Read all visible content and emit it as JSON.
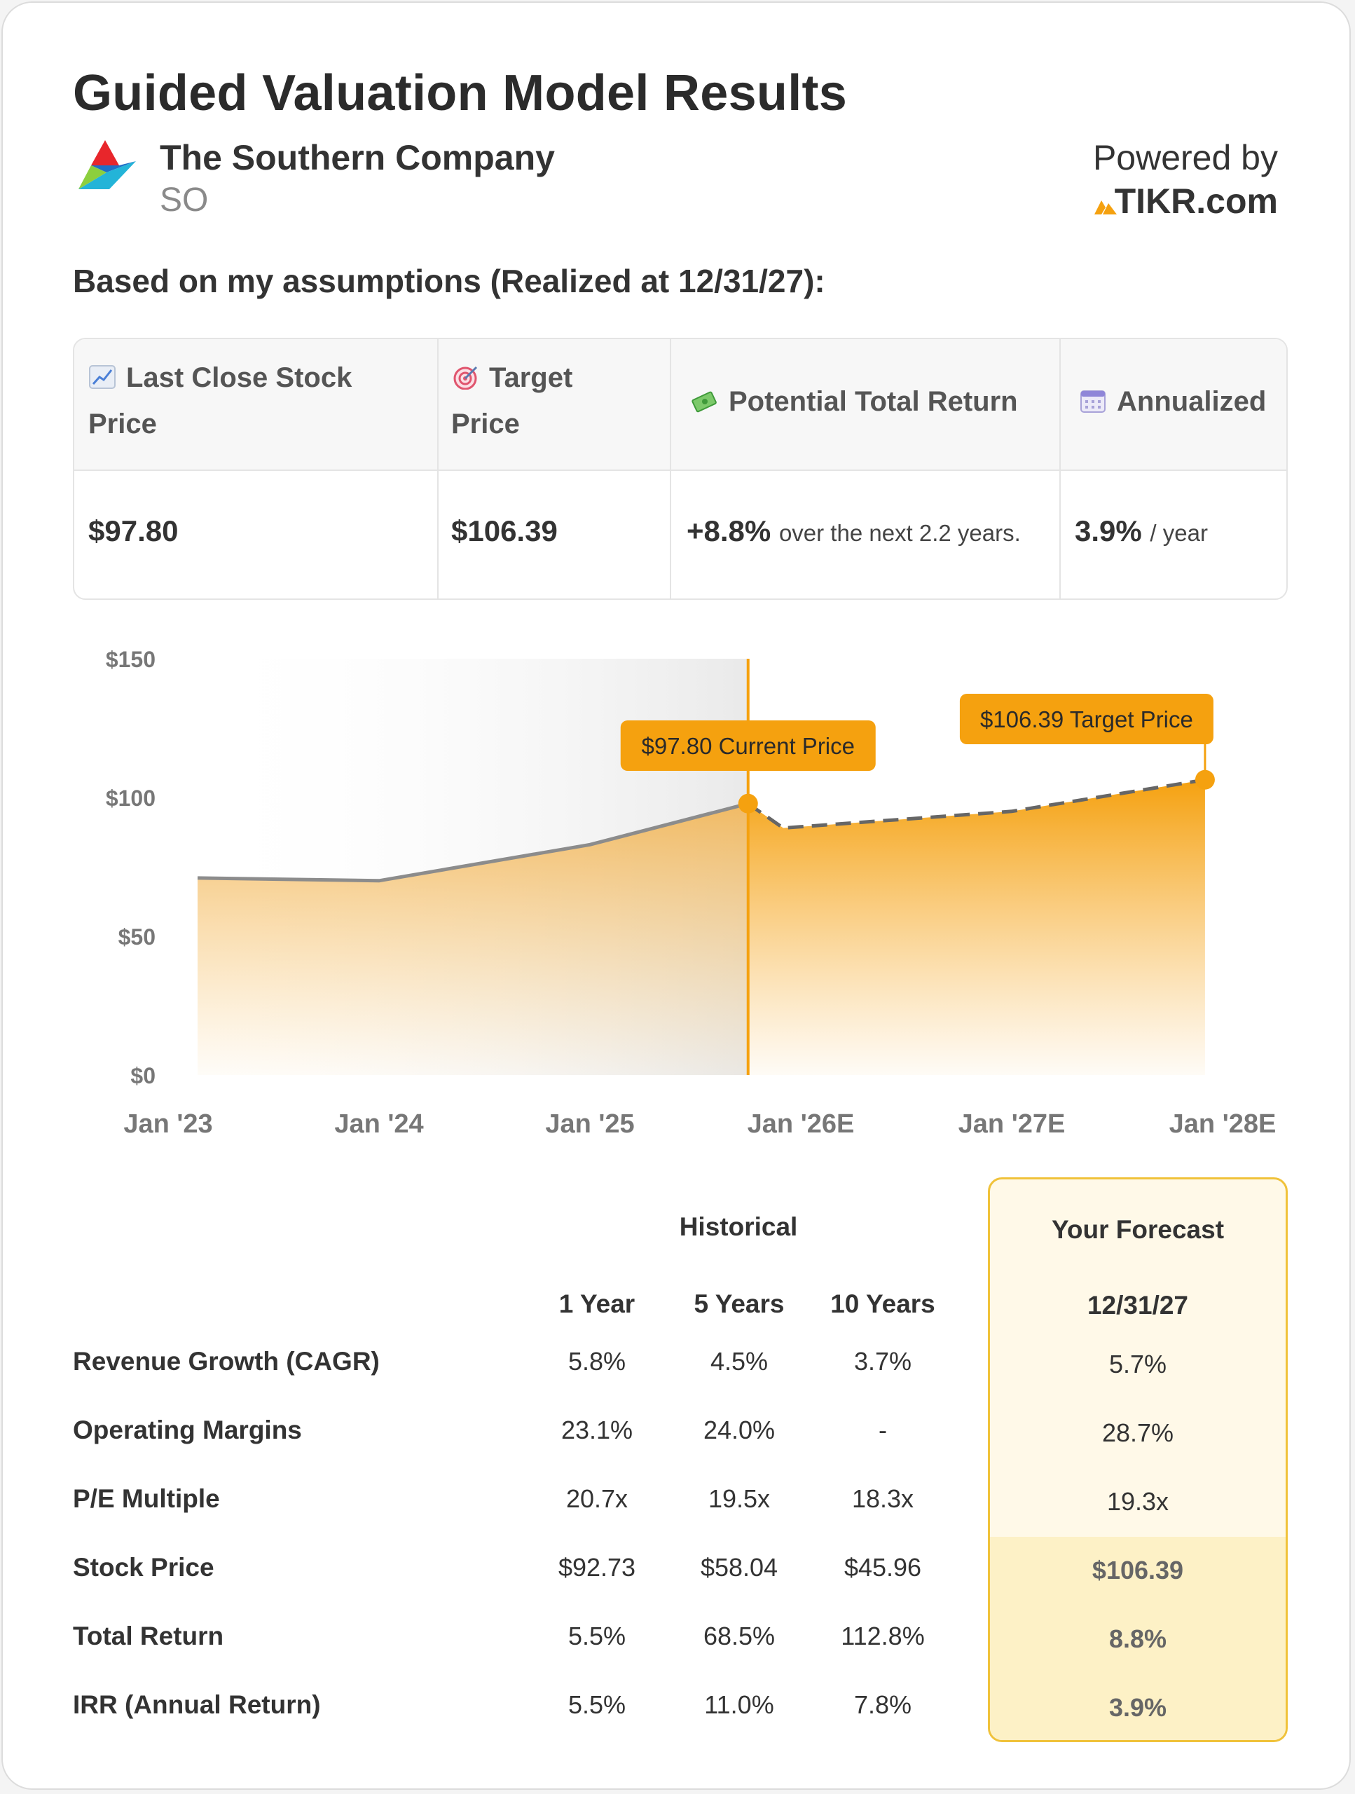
{
  "title": "Guided Valuation Model Results",
  "company": {
    "name": "The Southern Company",
    "ticker": "SO"
  },
  "powered_by": {
    "label": "Powered by",
    "brand": "TIKR.com"
  },
  "assumptions_label": "Based on my assumptions (Realized at 12/31/27):",
  "summary": {
    "headers": {
      "last_close_1": "Last Close Stock",
      "last_close_2": "Price",
      "target_1": "Target",
      "target_2": "Price",
      "total_return": "Potential Total Return",
      "annualized": "Annualized"
    },
    "values": {
      "last_close": "$97.80",
      "target": "$106.39",
      "total_return": "+8.8%",
      "total_return_suffix": "over the next 2.2 years.",
      "annualized": "3.9%",
      "annualized_suffix": "/ year"
    }
  },
  "chart_data": {
    "type": "area",
    "x_labels": [
      "Jan '23",
      "Jan '24",
      "Jan '25",
      "Jan '26E",
      "Jan '27E",
      "Jan '28E"
    ],
    "y_ticks": [
      "$0",
      "$50",
      "$100",
      "$150"
    ],
    "ylim": [
      0,
      150
    ],
    "historical": {
      "x": [
        "2023-01",
        "2024-01",
        "2025-01",
        "2025-10"
      ],
      "y": [
        71,
        70,
        83,
        97.8
      ]
    },
    "forecast": {
      "x": [
        "2025-10",
        "2025-12",
        "2027-01",
        "2027-12"
      ],
      "y": [
        97.8,
        89,
        95,
        106.39
      ]
    },
    "annotations": {
      "current": {
        "label": "$97.80 Current Price",
        "value": 97.8
      },
      "target": {
        "label": "$106.39 Target Price",
        "value": 106.39
      }
    },
    "colors": {
      "accent": "#f5a10f",
      "history_line": "#8c8c8c",
      "forecast_line": "#666666"
    }
  },
  "stats": {
    "historical_label": "Historical",
    "forecast_label": "Your Forecast",
    "forecast_date": "12/31/27",
    "columns": [
      "1 Year",
      "5 Years",
      "10 Years"
    ],
    "rows": [
      {
        "label": "Revenue Growth (CAGR)",
        "values": [
          "5.8%",
          "4.5%",
          "3.7%"
        ],
        "forecast": "5.7%"
      },
      {
        "label": "Operating Margins",
        "values": [
          "23.1%",
          "24.0%",
          "-"
        ],
        "forecast": "28.7%"
      },
      {
        "label": "P/E Multiple",
        "values": [
          "20.7x",
          "19.5x",
          "18.3x"
        ],
        "forecast": "19.3x"
      },
      {
        "label": "Stock Price",
        "values": [
          "$92.73",
          "$58.04",
          "$45.96"
        ],
        "forecast": "$106.39"
      },
      {
        "label": "Total Return",
        "values": [
          "5.5%",
          "68.5%",
          "112.8%"
        ],
        "forecast": "8.8%"
      },
      {
        "label": "IRR (Annual Return)",
        "values": [
          "5.5%",
          "11.0%",
          "7.8%"
        ],
        "forecast": "3.9%"
      }
    ]
  }
}
